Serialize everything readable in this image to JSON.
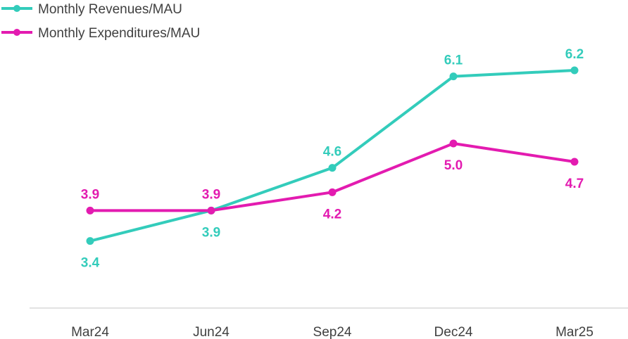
{
  "chart_data": {
    "type": "line",
    "categories": [
      "Mar24",
      "Jun24",
      "Sep24",
      "Dec24",
      "Mar25"
    ],
    "series": [
      {
        "name": "Monthly Revenues/MAU",
        "values": [
          3.4,
          3.9,
          4.6,
          6.1,
          6.2
        ],
        "labels": [
          "3.4",
          "3.9",
          "4.6",
          "6.1",
          "6.2"
        ],
        "color": "#33CCBB"
      },
      {
        "name": "Monthly Expenditures/MAU",
        "values": [
          3.9,
          3.9,
          4.2,
          5.0,
          4.7
        ],
        "labels": [
          "3.9",
          "3.9",
          "4.2",
          "5.0",
          "4.7"
        ],
        "color": "#E31BB0"
      }
    ],
    "ylim": [
      2.3,
      6.5
    ],
    "grid": false,
    "legend": "top-left",
    "axis_color": "#D9D9D9",
    "text_color": "#404040"
  }
}
